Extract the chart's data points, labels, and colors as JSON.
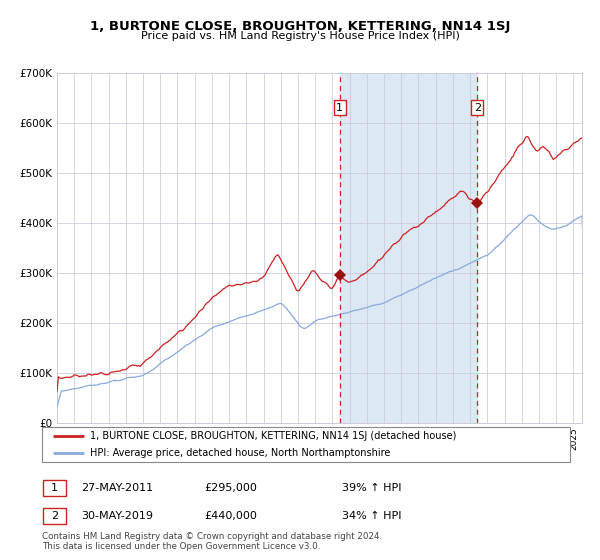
{
  "title": "1, BURTONE CLOSE, BROUGHTON, KETTERING, NN14 1SJ",
  "subtitle": "Price paid vs. HM Land Registry's House Price Index (HPI)",
  "legend_line1": "1, BURTONE CLOSE, BROUGHTON, KETTERING, NN14 1SJ (detached house)",
  "legend_line2": "HPI: Average price, detached house, North Northamptonshire",
  "marker1_year": 2011.42,
  "marker1_price": 295000,
  "marker2_year": 2019.42,
  "marker2_price": 440000,
  "footer": "Contains HM Land Registry data © Crown copyright and database right 2024.\nThis data is licensed under the Open Government Licence v3.0.",
  "line_color_red": "#cc2222",
  "line_color_blue": "#88aadd",
  "grid_color": "#ccccdd",
  "shade_color": "#dde8f5",
  "ylim": [
    0,
    700000
  ],
  "xlim_start": 1995.0,
  "xlim_end": 2025.5,
  "yticks": [
    0,
    100000,
    200000,
    300000,
    400000,
    500000,
    600000,
    700000
  ],
  "ylabels": [
    "£0",
    "£100K",
    "£200K",
    "£300K",
    "£400K",
    "£500K",
    "£600K",
    "£700K"
  ]
}
